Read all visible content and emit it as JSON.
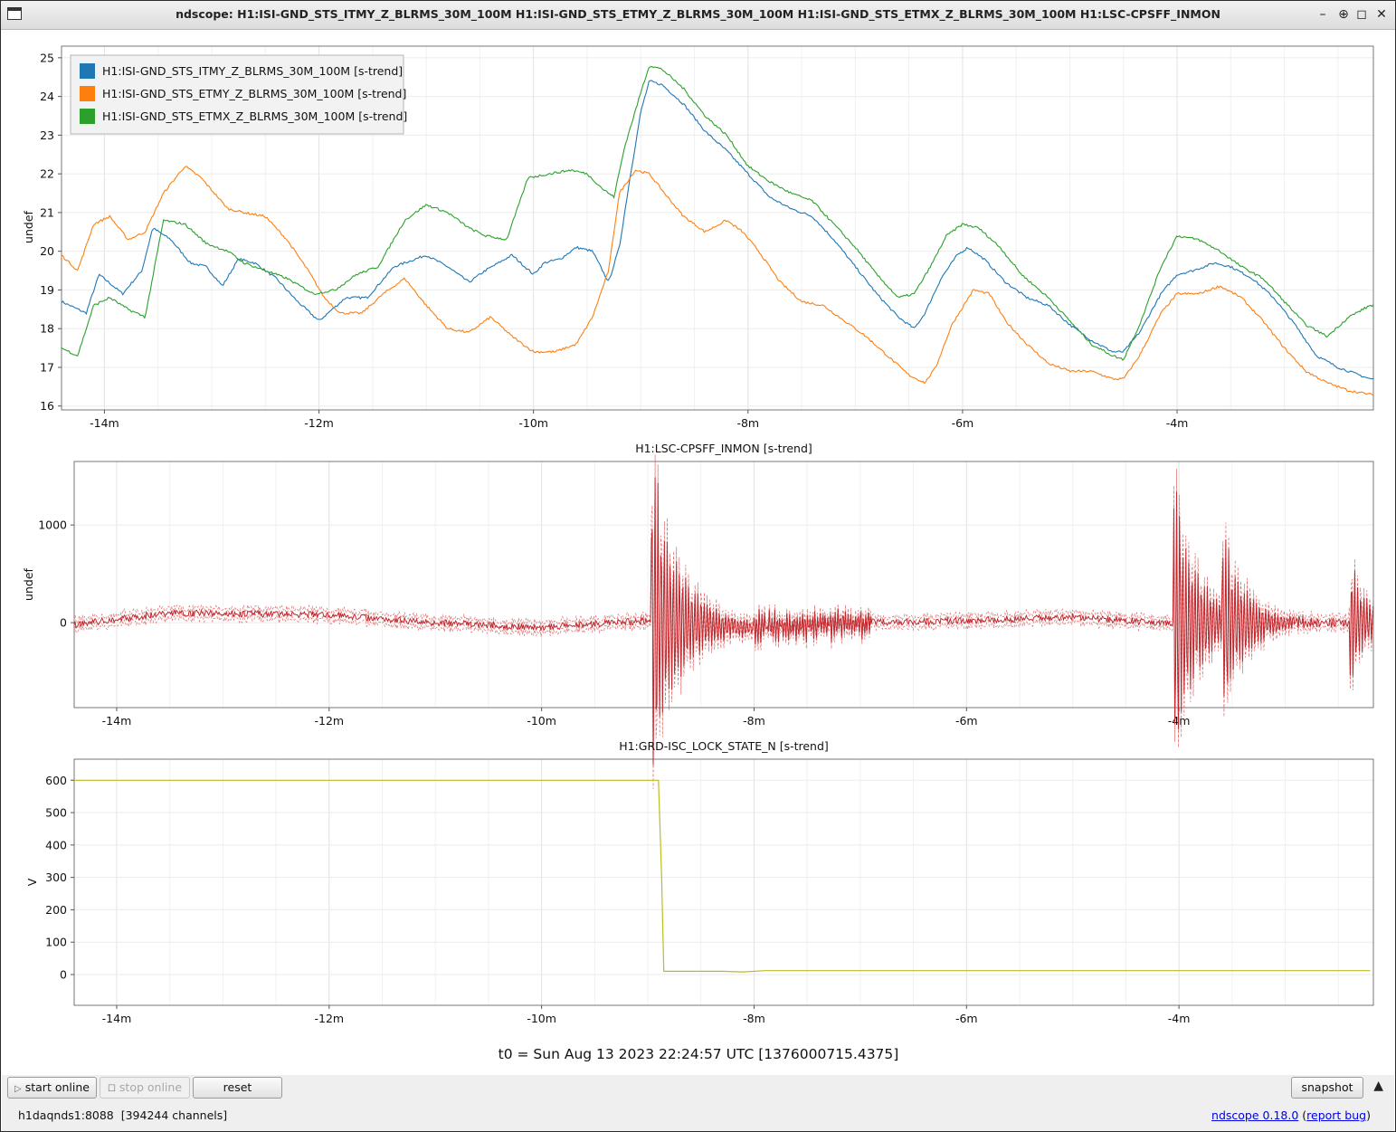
{
  "window": {
    "title": "ndscope: H1:ISI-GND_STS_ITMY_Z_BLRMS_30M_100M H1:ISI-GND_STS_ETMY_Z_BLRMS_30M_100M H1:ISI-GND_STS_ETMX_Z_BLRMS_30M_100M H1:LSC-CPSFF_INMON",
    "minimize_icon": "minimize-icon",
    "maximize_icon": "maximize-icon",
    "close_icon": "close-icon"
  },
  "x_ticks": [
    "-14m",
    "-12m",
    "-10m",
    "-8m",
    "-6m",
    "-4m"
  ],
  "t0_label": "t0 = Sun Aug 13 2023 22:24:57 UTC [1376000715.4375]",
  "toolbar": {
    "start_online": "start online",
    "stop_online": "stop online",
    "reset": "reset",
    "snapshot": "snapshot"
  },
  "status": {
    "server": "h1daqnds1:8088",
    "channels": "[394244 channels]",
    "version_link": "ndscope 0.18.0",
    "report_link": "report bug"
  },
  "colors": {
    "itmy": "#1f77b4",
    "etmy": "#ff7f0e",
    "etmx": "#2ca02c",
    "cpsff": "#c1272d",
    "lock": "#bcbd22"
  },
  "chart_data": [
    {
      "type": "line",
      "title": "",
      "ylabel": "undef",
      "xlabel": "",
      "x_unit": "minutes relative to t0",
      "xlim": [
        -14.4,
        -2.17
      ],
      "ylim": [
        15.9,
        25.3
      ],
      "yticks": [
        16,
        17,
        18,
        19,
        20,
        21,
        22,
        23,
        24,
        25
      ],
      "legend_position": "top-left",
      "grid": true,
      "series": [
        {
          "name": "H1:ISI-GND_STS_ITMY_Z_BLRMS_30M_100M [s-trend]",
          "x": [
            -14.4,
            -14.17,
            -14.05,
            -13.83,
            -13.65,
            -13.55,
            -13.38,
            -13.2,
            -13.05,
            -12.9,
            -12.75,
            -12.6,
            -12.4,
            -12.2,
            -12.0,
            -11.75,
            -11.55,
            -11.3,
            -11.0,
            -10.8,
            -10.6,
            -10.45,
            -10.2,
            -10.0,
            -9.9,
            -9.75,
            -9.6,
            -9.45,
            -9.3,
            -9.2,
            -9.1,
            -9.0,
            -8.92,
            -8.8,
            -8.6,
            -8.4,
            -8.2,
            -8.0,
            -7.8,
            -7.6,
            -7.4,
            -7.2,
            -7.0,
            -6.8,
            -6.6,
            -6.45,
            -6.35,
            -6.2,
            -6.05,
            -5.95,
            -5.8,
            -5.6,
            -5.4,
            -5.2,
            -5.0,
            -4.8,
            -4.6,
            -4.5,
            -4.35,
            -4.15,
            -4.0,
            -3.85,
            -3.65,
            -3.5,
            -3.3,
            -3.1,
            -2.9,
            -2.7,
            -2.5,
            -2.2
          ],
          "y": [
            18.7,
            18.4,
            19.4,
            18.9,
            19.5,
            20.6,
            20.3,
            19.7,
            19.6,
            19.1,
            19.8,
            19.7,
            19.3,
            18.7,
            18.2,
            18.8,
            18.8,
            19.6,
            19.9,
            19.6,
            19.2,
            19.5,
            19.9,
            19.4,
            19.7,
            19.8,
            20.1,
            20.0,
            19.2,
            20.1,
            21.9,
            23.6,
            24.4,
            24.3,
            23.8,
            23.1,
            22.6,
            22.0,
            21.4,
            21.1,
            20.9,
            20.3,
            19.6,
            18.9,
            18.3,
            18.0,
            18.4,
            19.3,
            19.9,
            20.1,
            19.8,
            19.2,
            18.8,
            18.6,
            18.1,
            17.7,
            17.4,
            17.4,
            17.9,
            18.9,
            19.4,
            19.5,
            19.7,
            19.6,
            19.3,
            18.8,
            18.1,
            17.3,
            17.0,
            16.7
          ]
        },
        {
          "name": "H1:ISI-GND_STS_ETMY_Z_BLRMS_30M_100M [s-trend]",
          "x": [
            -14.4,
            -14.25,
            -14.1,
            -13.95,
            -13.78,
            -13.62,
            -13.45,
            -13.25,
            -13.1,
            -12.85,
            -12.7,
            -12.5,
            -12.3,
            -12.1,
            -11.95,
            -11.8,
            -11.6,
            -11.4,
            -11.2,
            -11.0,
            -10.8,
            -10.6,
            -10.4,
            -10.2,
            -10.0,
            -9.8,
            -9.6,
            -9.45,
            -9.3,
            -9.2,
            -9.05,
            -8.92,
            -8.75,
            -8.6,
            -8.4,
            -8.2,
            -8.05,
            -7.9,
            -7.7,
            -7.5,
            -7.3,
            -7.1,
            -6.9,
            -6.7,
            -6.5,
            -6.35,
            -6.25,
            -6.1,
            -5.9,
            -5.75,
            -5.6,
            -5.4,
            -5.2,
            -5.0,
            -4.8,
            -4.6,
            -4.5,
            -4.35,
            -4.15,
            -4.0,
            -3.8,
            -3.6,
            -3.4,
            -3.2,
            -3.0,
            -2.8,
            -2.6,
            -2.4,
            -2.2
          ],
          "y": [
            19.9,
            19.5,
            20.7,
            20.9,
            20.3,
            20.5,
            21.5,
            22.2,
            21.9,
            21.1,
            21.0,
            20.9,
            20.3,
            19.5,
            18.8,
            18.4,
            18.4,
            18.9,
            19.3,
            18.6,
            18.0,
            17.9,
            18.3,
            17.8,
            17.4,
            17.4,
            17.6,
            18.3,
            19.5,
            21.5,
            22.1,
            22.0,
            21.4,
            20.9,
            20.5,
            20.8,
            20.5,
            20.0,
            19.2,
            18.7,
            18.6,
            18.2,
            17.8,
            17.3,
            16.8,
            16.6,
            17.0,
            18.1,
            19.0,
            18.9,
            18.2,
            17.6,
            17.1,
            16.9,
            16.9,
            16.7,
            16.7,
            17.3,
            18.4,
            18.9,
            18.9,
            19.1,
            18.8,
            18.2,
            17.5,
            16.9,
            16.6,
            16.4,
            16.3
          ]
        },
        {
          "name": "H1:ISI-GND_STS_ETMX_Z_BLRMS_30M_100M [s-trend]",
          "x": [
            -14.4,
            -14.25,
            -14.1,
            -13.95,
            -13.78,
            -13.62,
            -13.45,
            -13.25,
            -13.05,
            -12.85,
            -12.7,
            -12.5,
            -12.3,
            -12.05,
            -11.85,
            -11.65,
            -11.45,
            -11.2,
            -11.0,
            -10.8,
            -10.6,
            -10.45,
            -10.25,
            -10.05,
            -9.85,
            -9.65,
            -9.5,
            -9.35,
            -9.25,
            -9.15,
            -9.0,
            -8.92,
            -8.8,
            -8.6,
            -8.4,
            -8.2,
            -8.0,
            -7.8,
            -7.6,
            -7.4,
            -7.2,
            -7.0,
            -6.8,
            -6.6,
            -6.45,
            -6.3,
            -6.15,
            -6.0,
            -5.85,
            -5.65,
            -5.45,
            -5.2,
            -5.0,
            -4.8,
            -4.6,
            -4.5,
            -4.35,
            -4.15,
            -4.0,
            -3.8,
            -3.6,
            -3.4,
            -3.2,
            -3.0,
            -2.8,
            -2.6,
            -2.4,
            -2.2
          ],
          "y": [
            17.5,
            17.3,
            18.6,
            18.8,
            18.5,
            18.3,
            20.8,
            20.7,
            20.2,
            20.0,
            19.7,
            19.5,
            19.3,
            18.9,
            19.0,
            19.4,
            19.6,
            20.8,
            21.2,
            21.0,
            20.6,
            20.4,
            20.3,
            21.9,
            22.0,
            22.1,
            22.0,
            21.6,
            21.4,
            22.7,
            24.1,
            24.8,
            24.7,
            24.2,
            23.5,
            23.0,
            22.2,
            21.8,
            21.5,
            21.3,
            20.7,
            20.1,
            19.4,
            18.8,
            18.9,
            19.6,
            20.4,
            20.7,
            20.6,
            20.1,
            19.4,
            18.8,
            18.2,
            17.6,
            17.3,
            17.2,
            18.1,
            19.6,
            20.4,
            20.3,
            20.0,
            19.6,
            19.3,
            18.7,
            18.1,
            17.8,
            18.3,
            18.6
          ]
        }
      ]
    },
    {
      "type": "line",
      "title": "H1:LSC-CPSFF_INMON [s-trend]",
      "ylabel": "undef",
      "xlabel": "",
      "x_unit": "minutes relative to t0",
      "xlim": [
        -14.4,
        -2.17
      ],
      "ylim": [
        -870,
        1650
      ],
      "yticks": [
        0,
        1000
      ],
      "grid": true,
      "series": [
        {
          "name": "H1:LSC-CPSFF_INMON [s-trend]",
          "note_style": "mean with dashed min/max envelope",
          "bursts": [
            {
              "t": -8.92,
              "peak": 1550,
              "decay_min": 0.3
            },
            {
              "t": -4.0,
              "peak": 1350,
              "decay_min": 0.25
            },
            {
              "t": -3.55,
              "peak": 700,
              "decay_min": 0.25
            },
            {
              "t": -2.35,
              "peak": 550,
              "decay_min": 0.2
            }
          ],
          "baseline": [
            {
              "x": -14.4,
              "y": -20
            },
            {
              "x": -13.5,
              "y": 100
            },
            {
              "x": -12.0,
              "y": 80
            },
            {
              "x": -11.0,
              "y": 0
            },
            {
              "x": -10.0,
              "y": -50
            },
            {
              "x": -9.0,
              "y": 20
            },
            {
              "x": -8.0,
              "y": -50
            },
            {
              "x": -7.0,
              "y": 0
            },
            {
              "x": -6.0,
              "y": 20
            },
            {
              "x": -5.0,
              "y": 60
            },
            {
              "x": -4.2,
              "y": 0
            },
            {
              "x": -2.2,
              "y": 0
            }
          ]
        }
      ]
    },
    {
      "type": "line",
      "title": "H1:GRD-ISC_LOCK_STATE_N [s-trend]",
      "ylabel": "V",
      "xlabel": "",
      "x_unit": "minutes relative to t0",
      "xlim": [
        -14.4,
        -2.17
      ],
      "ylim": [
        -95,
        665
      ],
      "yticks": [
        0,
        100,
        200,
        300,
        400,
        500,
        600
      ],
      "grid": true,
      "series": [
        {
          "name": "H1:GRD-ISC_LOCK_STATE_N [s-trend]",
          "x": [
            -14.4,
            -8.9,
            -8.87,
            -8.85,
            -8.3,
            -8.1,
            -7.9,
            -2.2
          ],
          "y": [
            600,
            600,
            300,
            10,
            10,
            8,
            12,
            12
          ]
        }
      ]
    }
  ]
}
